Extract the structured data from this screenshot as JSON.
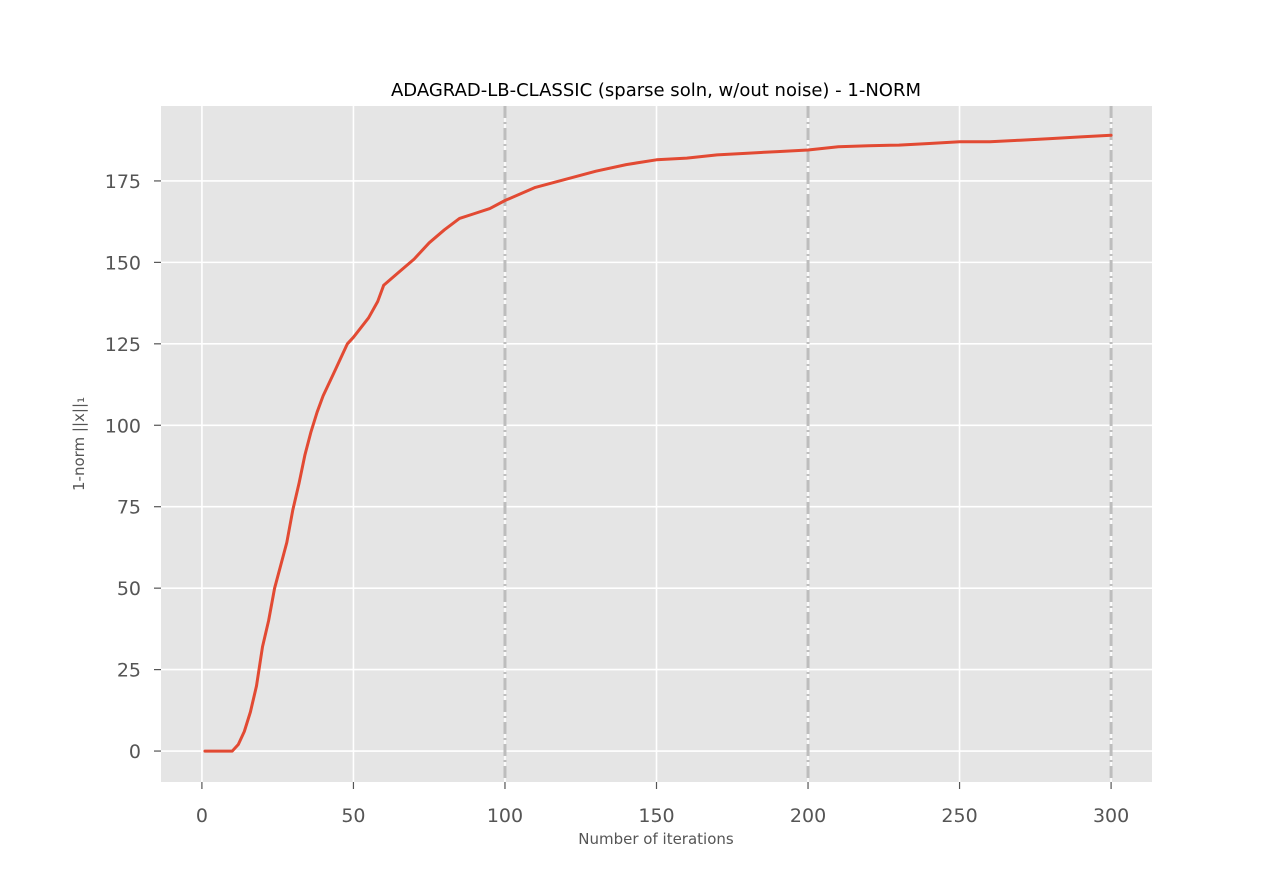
{
  "chart_data": {
    "type": "line",
    "title": "ADAGRAD-LB-CLASSIC (sparse soln, w/out noise) - 1-NORM",
    "xlabel": "Number of iterations",
    "ylabel": "1-norm ||x||₁",
    "xlim": [
      -13.5,
      313.5
    ],
    "ylim": [
      -9.5,
      198
    ],
    "xticks": [
      0,
      50,
      100,
      150,
      200,
      250,
      300
    ],
    "yticks": [
      0,
      25,
      50,
      75,
      100,
      125,
      150,
      175
    ],
    "grid": true,
    "style": "ggplot",
    "vlines": [
      100,
      200,
      300
    ],
    "series": [
      {
        "color": "#e24a33",
        "x": [
          1,
          5,
          10,
          12,
          14,
          16,
          18,
          20,
          22,
          24,
          26,
          28,
          30,
          32,
          34,
          36,
          38,
          40,
          42,
          44,
          46,
          48,
          50,
          55,
          58,
          60,
          65,
          70,
          75,
          80,
          85,
          90,
          95,
          100,
          110,
          120,
          130,
          140,
          150,
          160,
          170,
          180,
          190,
          200,
          210,
          220,
          230,
          240,
          250,
          260,
          270,
          280,
          290,
          300
        ],
        "y": [
          0,
          0,
          0,
          2,
          6,
          12,
          20,
          32,
          40,
          50,
          57,
          64,
          74,
          82,
          91,
          98,
          104,
          109,
          113,
          117,
          121,
          125,
          127,
          133,
          138,
          143,
          147,
          151,
          156,
          160,
          163.5,
          165,
          166.5,
          169,
          173,
          175.5,
          178,
          180,
          181.5,
          182,
          183,
          183.5,
          184,
          184.5,
          185.5,
          185.8,
          186,
          186.5,
          187,
          187,
          187.5,
          188,
          188.5,
          189
        ]
      }
    ]
  }
}
